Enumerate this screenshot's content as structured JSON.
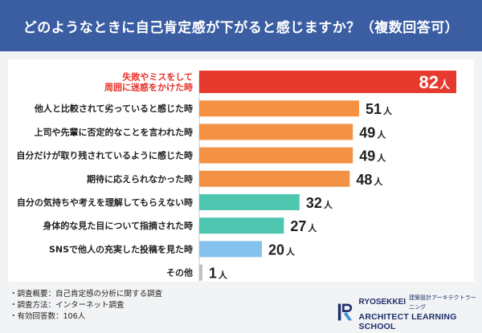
{
  "title": "どのようなときに自己肯定感が下がると感じますか？（複数回答可）",
  "chart_data": {
    "type": "bar",
    "orientation": "horizontal",
    "categories": [
      [
        "失敗やミスをして",
        "周囲に迷惑をかけた時"
      ],
      [
        "他人と比較されて劣っていると感じた時"
      ],
      [
        "上司や先輩に否定的なことを言われた時"
      ],
      [
        "自分だけが取り残されているように感じた時"
      ],
      [
        "期待に応えられなかった時"
      ],
      [
        "自分の気持ちや考えを理解してもらえない時"
      ],
      [
        "身体的な見た目について指摘された時"
      ],
      [
        "SNSで他人の充実した投稿を見た時"
      ],
      [
        "その他"
      ]
    ],
    "values": [
      82,
      51,
      49,
      49,
      48,
      32,
      27,
      20,
      1
    ],
    "unit": "人",
    "xlim": [
      0,
      82
    ],
    "colors": [
      "#e63a2e",
      "#f39244",
      "#f39244",
      "#f39244",
      "#f39244",
      "#4fc7b0",
      "#4fc7b0",
      "#86c3ec",
      "#bfbfbf"
    ],
    "highlight_index": 0,
    "grid": false
  },
  "notes": [
    "・調査概要：自己肯定感の分析に関する調査",
    "・調査方法：インターネット調査",
    "・有効回答数：106人"
  ],
  "logo": {
    "top": "RYOSEKKEI",
    "jp": "建築設計アーキテクトラーニング",
    "bottom": "ARCHITECT LEARNING SCHOOL"
  },
  "colors": {
    "header": "#3b5ea3",
    "highlight_text": "#e5312b",
    "logo": "#1f2f6b"
  }
}
